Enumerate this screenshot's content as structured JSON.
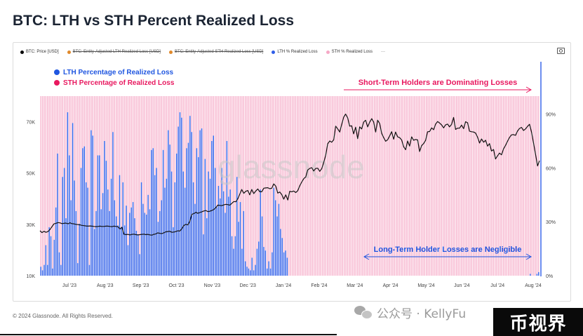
{
  "title": "BTC: LTH vs STH Percent Realized Loss",
  "legend": [
    {
      "label": "BTC: Price [USD]",
      "color": "#000000",
      "strike": false
    },
    {
      "label": "BTC: Entity-Adjusted LTH Realized Loss [USD]",
      "color": "#e0892b",
      "strike": true
    },
    {
      "label": "BTC: Entity-Adjusted STH Realized Loss [USD]",
      "color": "#e0892b",
      "strike": true
    },
    {
      "label": "LTH % Realized Loss",
      "color": "#2f5ee8",
      "strike": false
    },
    {
      "label": "STH % Realized Loss",
      "color": "#f6a9c6",
      "strike": false
    },
    {
      "label": "···",
      "color": "",
      "strike": false
    }
  ],
  "overlay_legend": {
    "lth": {
      "label": "LTH Percentage of Realized Loss",
      "color": "#1f56e0"
    },
    "sth": {
      "label": "STH Percentage of Realized Loss",
      "color": "#e8185f"
    }
  },
  "annotations": {
    "sth_dominating": "Short-Term Holders are Dominating Losses",
    "lth_negligible": "Long-Term Holder Losses are Negligible"
  },
  "watermark": "glassnode",
  "footer": "© 2024 Glassnode. All Rights Reserved.",
  "wechat": "公众号 · KellyFu",
  "brand": "币视界",
  "colors": {
    "lth_bar": "#2f5ee8",
    "sth_bar": "#f7b6cf",
    "price_line": "#111111",
    "annotation_red": "#e8185f",
    "annotation_blue": "#1f56e0"
  },
  "chart_data": {
    "type": "bar",
    "title": "BTC: LTH vs STH Percent Realized Loss",
    "x_ticks": [
      "Jul '23",
      "Aug '23",
      "Sep '23",
      "Oct '23",
      "Nov '23",
      "Dec '23",
      "Jan '24",
      "Feb '24",
      "Mar '24",
      "Apr '24",
      "May '24",
      "Jun '24",
      "Jul '24",
      "Aug '24"
    ],
    "y_left_ticks": [
      "10K",
      "30K",
      "50K",
      "70K"
    ],
    "y_left_range": [
      10000,
      80000
    ],
    "y_right_ticks": [
      "0%",
      "30%",
      "60%",
      "90%"
    ],
    "y_right_range": [
      0,
      100
    ],
    "series": [
      {
        "name": "LTH % Realized Loss",
        "kind": "bar",
        "values": [
          5,
          3,
          6,
          17,
          6,
          27,
          22,
          4,
          20,
          38,
          68,
          13,
          6,
          55,
          60,
          32,
          91,
          67,
          42,
          85,
          53,
          36,
          7,
          29,
          60,
          71,
          72,
          52,
          49,
          6,
          81,
          78,
          26,
          36,
          67,
          67,
          37,
          46,
          75,
          64,
          48,
          36,
          54,
          80,
          42,
          33,
          28,
          56,
          27,
          52,
          28,
          39,
          17,
          35,
          38,
          41,
          32,
          25,
          23,
          12,
          52,
          40,
          35,
          34,
          45,
          37,
          70,
          71,
          56,
          60,
          30,
          36,
          42,
          70,
          49,
          54,
          81,
          73,
          58,
          27,
          52,
          68,
          83,
          91,
          88,
          58,
          49,
          71,
          74,
          89,
          80,
          52,
          40,
          71,
          66,
          81,
          82,
          23,
          65,
          32,
          58,
          54,
          75,
          78,
          60,
          38,
          50,
          43,
          60,
          47,
          35,
          75,
          44,
          48,
          22,
          15,
          22,
          55,
          30,
          41,
          15,
          36,
          8,
          5,
          4,
          3,
          10,
          3,
          6,
          15,
          19,
          48,
          33,
          16,
          14,
          4,
          8,
          4,
          13,
          49,
          42,
          33,
          40,
          26,
          21,
          13,
          14,
          10,
          0,
          0,
          0,
          0,
          0,
          0,
          0,
          0,
          0,
          0,
          0,
          0,
          0,
          0,
          0,
          0,
          0,
          0,
          0,
          0,
          0,
          0,
          0,
          0,
          0,
          0,
          0,
          0,
          0,
          0,
          0,
          0,
          0,
          0,
          0,
          0,
          0,
          0,
          0,
          0,
          0,
          0,
          0,
          0,
          0,
          0,
          0,
          0,
          0,
          0,
          0,
          0,
          0,
          0,
          0,
          0,
          0,
          0,
          0,
          0,
          0,
          0,
          0,
          0,
          0,
          0,
          0,
          0,
          0,
          0,
          0,
          0,
          0,
          0,
          0,
          0,
          0,
          0,
          0,
          0,
          0,
          0,
          0,
          0,
          0,
          0,
          0,
          0,
          0,
          0,
          0,
          0,
          0,
          0,
          0,
          0,
          0,
          0,
          0,
          0,
          0,
          0,
          0,
          0,
          0,
          0,
          0,
          0,
          0,
          0,
          0,
          0,
          0,
          0,
          0,
          0,
          0,
          0,
          0,
          0,
          0,
          0,
          0,
          0,
          0,
          0,
          0,
          0,
          0,
          0,
          0,
          0,
          0,
          0,
          0,
          0,
          0,
          0,
          0,
          0,
          0,
          0,
          0,
          0,
          1,
          0,
          0,
          0,
          1,
          2
        ]
      },
      {
        "name": "STH % Realized Loss",
        "kind": "bar",
        "note": "complement of LTH (fills to 100%)"
      },
      {
        "name": "BTC: Price [USD]",
        "kind": "line",
        "values": [
          27500,
          26800,
          27300,
          26900,
          27200,
          28000,
          29100,
          30200,
          30400,
          30700,
          30600,
          30300,
          30400,
          30500,
          30200,
          30600,
          30300,
          30200,
          30000,
          29900,
          29800,
          29600,
          29500,
          29400,
          29300,
          29400,
          29300,
          29200,
          29100,
          29200,
          29300,
          29200,
          29200,
          29300,
          29300,
          29200,
          29100,
          29300,
          29200,
          29100,
          28200,
          28900,
          26200,
          26000,
          26100,
          25900,
          26100,
          26200,
          26000,
          25900,
          26000,
          26100,
          26200,
          26000,
          26100,
          25900,
          25800,
          26100,
          26300,
          26700,
          26500,
          26400,
          26700,
          27100,
          27200,
          27300,
          26900,
          27000,
          27200,
          27500,
          27400,
          28300,
          29600,
          30000,
          29800,
          31200,
          33900,
          34200,
          34700,
          34300,
          34600,
          34900,
          35200,
          35400,
          35000,
          35100,
          35400,
          35800,
          36500,
          37500,
          37400,
          37300,
          37600,
          37800,
          37700,
          37500,
          38200,
          38900,
          38800,
          40000,
          41800,
          43600,
          42100,
          42900,
          43200,
          41500,
          43600,
          42000,
          43000,
          43800,
          42700,
          42700,
          44100,
          44200,
          44300,
          43900,
          44100,
          45800,
          44900,
          42200,
          42600,
          41600,
          39800,
          41500,
          39500,
          42900,
          42700,
          43000,
          42400,
          43100,
          45000,
          46500,
          47800,
          48500,
          51200,
          51800,
          52100,
          50800,
          51800,
          51900,
          50700,
          51700,
          54100,
          57000,
          61400,
          62500,
          62000,
          63000,
          68300,
          67200,
          66000,
          68900,
          71800,
          73000,
          71500,
          68300,
          68400,
          65300,
          67900,
          63400,
          68000,
          67200,
          69900,
          70600,
          68000,
          69800,
          71200,
          69900,
          66000,
          70600,
          69300,
          65500,
          63800,
          62400,
          63000,
          64500,
          66100,
          63200,
          66000,
          64100,
          63800,
          62900,
          60300,
          59100,
          62500,
          60500,
          64100,
          62800,
          63100,
          62900,
          58400,
          60700,
          61500,
          62800,
          66100,
          66200,
          67600,
          66900,
          69100,
          70100,
          69500,
          68800,
          67600,
          68800,
          69100,
          68000,
          69000,
          71700,
          67000,
          67500,
          67500,
          68700,
          67300,
          70000,
          69600,
          66300,
          66100,
          66000,
          65600,
          64000,
          61700,
          63300,
          62000,
          62800,
          60500,
          61500,
          58600,
          59200,
          55500,
          56700,
          57800,
          57100,
          59400,
          60800,
          62400,
          63900,
          64900,
          65000,
          64700,
          66400,
          67400,
          67800,
          66600,
          67200,
          68200,
          69000,
          66000,
          61700,
          57400,
          52800,
          54800
        ]
      }
    ]
  }
}
